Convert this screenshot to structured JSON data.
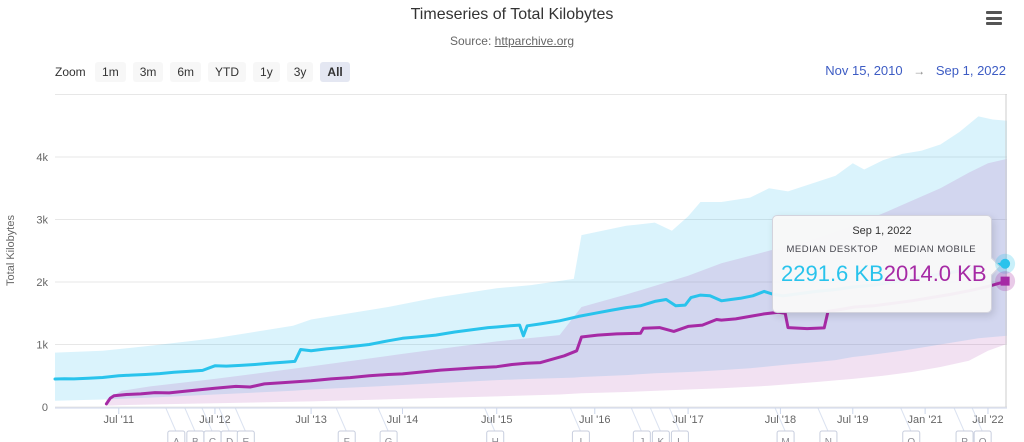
{
  "header": {
    "title": "Timeseries of Total Kilobytes",
    "subtitle_prefix": "Source: ",
    "subtitle_link": "httparchive.org"
  },
  "range_selector": {
    "zoom_label": "Zoom",
    "buttons": [
      "1m",
      "3m",
      "6m",
      "YTD",
      "1y",
      "3y",
      "All"
    ],
    "selected": "All",
    "from_date": "Nov 15, 2010",
    "arrow_glyph": "→",
    "to_date": "Sep 1, 2022"
  },
  "tooltip": {
    "date": "Sep 1, 2022",
    "entries": [
      {
        "label": "MEDIAN DESKTOP",
        "value": "2291.6 KB",
        "color": "#29c3ec"
      },
      {
        "label": "MEDIAN MOBILE",
        "value": "2014.0 KB",
        "color": "#a62aa5"
      }
    ]
  },
  "colors": {
    "desktop_line": "#29c3ec",
    "mobile_line": "#a62aa5",
    "desktop_band": "rgba(72,196,240,0.20)",
    "mobile_band": "rgba(166,42,165,0.14)",
    "gridline": "#e7e7e7",
    "axis_line": "#ccd6eb",
    "crosshair": "#cccccc",
    "axis_text": "#666666",
    "flag_border": "#c8cede",
    "flag_text": "#8a8a92"
  },
  "chart_data": {
    "type": "line",
    "title": "Timeseries of Total Kilobytes",
    "ylabel": "Total Kilobytes",
    "ylim": [
      0,
      5000
    ],
    "yticks": [
      {
        "label": "0",
        "kb": 0
      },
      {
        "label": "1k",
        "kb": 1000
      },
      {
        "label": "2k",
        "kb": 2000
      },
      {
        "label": "3k",
        "kb": 3000
      },
      {
        "label": "4k",
        "kb": 4000
      },
      {
        "label": "",
        "kb": 5000
      }
    ],
    "xticks": [
      {
        "label": "Jul '11",
        "pos": 0.067
      },
      {
        "label": "Jul '12",
        "pos": 0.168
      },
      {
        "label": "Jul '13",
        "pos": 0.269
      },
      {
        "label": "Jul '14",
        "pos": 0.365
      },
      {
        "label": "Jul '15",
        "pos": 0.464
      },
      {
        "label": "Jul '16",
        "pos": 0.567
      },
      {
        "label": "Jul '17",
        "pos": 0.665
      },
      {
        "label": "Jul '18",
        "pos": 0.762
      },
      {
        "label": "Jul '19",
        "pos": 0.838
      },
      {
        "label": "Jan '21",
        "pos": 0.914
      },
      {
        "label": "Jul '22",
        "pos": 0.98
      }
    ],
    "series": [
      {
        "name": "Median Desktop",
        "unit": "KB",
        "last_value": 2291.6,
        "marker": "circle",
        "points": [
          [
            0,
            448
          ],
          [
            0.01,
            452
          ],
          [
            0.02,
            450
          ],
          [
            0.035,
            460
          ],
          [
            0.05,
            472
          ],
          [
            0.067,
            500
          ],
          [
            0.08,
            510
          ],
          [
            0.095,
            520
          ],
          [
            0.11,
            535
          ],
          [
            0.125,
            555
          ],
          [
            0.14,
            570
          ],
          [
            0.155,
            585
          ],
          [
            0.168,
            660
          ],
          [
            0.18,
            655
          ],
          [
            0.195,
            665
          ],
          [
            0.21,
            680
          ],
          [
            0.225,
            700
          ],
          [
            0.24,
            715
          ],
          [
            0.252,
            730
          ],
          [
            0.258,
            920
          ],
          [
            0.269,
            900
          ],
          [
            0.285,
            930
          ],
          [
            0.3,
            950
          ],
          [
            0.315,
            975
          ],
          [
            0.33,
            1000
          ],
          [
            0.35,
            1060
          ],
          [
            0.365,
            1100
          ],
          [
            0.38,
            1120
          ],
          [
            0.4,
            1150
          ],
          [
            0.42,
            1200
          ],
          [
            0.44,
            1240
          ],
          [
            0.455,
            1270
          ],
          [
            0.464,
            1280
          ],
          [
            0.478,
            1300
          ],
          [
            0.488,
            1310
          ],
          [
            0.492,
            1140
          ],
          [
            0.496,
            1300
          ],
          [
            0.51,
            1330
          ],
          [
            0.53,
            1380
          ],
          [
            0.55,
            1450
          ],
          [
            0.567,
            1500
          ],
          [
            0.585,
            1550
          ],
          [
            0.6,
            1590
          ],
          [
            0.615,
            1620
          ],
          [
            0.63,
            1690
          ],
          [
            0.642,
            1720
          ],
          [
            0.652,
            1620
          ],
          [
            0.662,
            1630
          ],
          [
            0.668,
            1750
          ],
          [
            0.678,
            1790
          ],
          [
            0.688,
            1780
          ],
          [
            0.7,
            1700
          ],
          [
            0.71,
            1720
          ],
          [
            0.72,
            1740
          ],
          [
            0.733,
            1780
          ],
          [
            0.745,
            1850
          ],
          [
            0.755,
            1800
          ],
          [
            0.765,
            1780
          ],
          [
            0.775,
            1800
          ],
          [
            0.8,
            1850
          ],
          [
            0.82,
            1880
          ],
          [
            0.838,
            1920
          ],
          [
            0.86,
            1950
          ],
          [
            0.88,
            2000
          ],
          [
            0.9,
            2050
          ],
          [
            0.92,
            2100
          ],
          [
            0.94,
            2150
          ],
          [
            0.96,
            2200
          ],
          [
            0.975,
            2250
          ],
          [
            0.99,
            2280
          ],
          [
            1,
            2291.6
          ]
        ]
      },
      {
        "name": "Median Mobile",
        "unit": "KB",
        "last_value": 2014.0,
        "marker": "square",
        "points": [
          [
            0.054,
            50
          ],
          [
            0.058,
            140
          ],
          [
            0.062,
            180
          ],
          [
            0.075,
            200
          ],
          [
            0.09,
            210
          ],
          [
            0.105,
            230
          ],
          [
            0.12,
            225
          ],
          [
            0.135,
            250
          ],
          [
            0.168,
            300
          ],
          [
            0.19,
            330
          ],
          [
            0.205,
            320
          ],
          [
            0.22,
            370
          ],
          [
            0.24,
            390
          ],
          [
            0.269,
            420
          ],
          [
            0.29,
            450
          ],
          [
            0.31,
            470
          ],
          [
            0.33,
            500
          ],
          [
            0.35,
            520
          ],
          [
            0.365,
            530
          ],
          [
            0.385,
            560
          ],
          [
            0.405,
            590
          ],
          [
            0.425,
            610
          ],
          [
            0.445,
            630
          ],
          [
            0.464,
            645
          ],
          [
            0.48,
            680
          ],
          [
            0.495,
            700
          ],
          [
            0.51,
            710
          ],
          [
            0.535,
            820
          ],
          [
            0.548,
            900
          ],
          [
            0.553,
            1120
          ],
          [
            0.57,
            1150
          ],
          [
            0.59,
            1170
          ],
          [
            0.615,
            1180
          ],
          [
            0.618,
            1260
          ],
          [
            0.635,
            1270
          ],
          [
            0.65,
            1210
          ],
          [
            0.665,
            1290
          ],
          [
            0.68,
            1310
          ],
          [
            0.695,
            1400
          ],
          [
            0.7,
            1390
          ],
          [
            0.715,
            1410
          ],
          [
            0.73,
            1450
          ],
          [
            0.745,
            1490
          ],
          [
            0.76,
            1515
          ],
          [
            0.767,
            1500
          ],
          [
            0.77,
            1270
          ],
          [
            0.79,
            1255
          ],
          [
            0.808,
            1265
          ],
          [
            0.812,
            1530
          ],
          [
            0.825,
            1560
          ],
          [
            0.84,
            1600
          ],
          [
            0.86,
            1620
          ],
          [
            0.88,
            1660
          ],
          [
            0.9,
            1700
          ],
          [
            0.92,
            1750
          ],
          [
            0.94,
            1800
          ],
          [
            0.96,
            1860
          ],
          [
            0.98,
            1930
          ],
          [
            1,
            2014.0
          ]
        ]
      }
    ],
    "bands": [
      {
        "name": "Desktop percentile band",
        "points": [
          [
            0,
            100,
            870
          ],
          [
            0.05,
            120,
            900
          ],
          [
            0.1,
            150,
            980
          ],
          [
            0.168,
            200,
            1100
          ],
          [
            0.25,
            260,
            1300
          ],
          [
            0.269,
            280,
            1400
          ],
          [
            0.35,
            340,
            1600
          ],
          [
            0.4,
            380,
            1750
          ],
          [
            0.464,
            430,
            1900
          ],
          [
            0.5,
            450,
            1950
          ],
          [
            0.545,
            470,
            2050
          ],
          [
            0.553,
            480,
            2750
          ],
          [
            0.6,
            510,
            2900
          ],
          [
            0.63,
            540,
            2950
          ],
          [
            0.648,
            550,
            2820
          ],
          [
            0.665,
            560,
            3050
          ],
          [
            0.678,
            570,
            3280
          ],
          [
            0.7,
            590,
            3280
          ],
          [
            0.73,
            620,
            3350
          ],
          [
            0.75,
            650,
            3500
          ],
          [
            0.77,
            680,
            3450
          ],
          [
            0.8,
            720,
            3600
          ],
          [
            0.82,
            750,
            3700
          ],
          [
            0.838,
            800,
            3900
          ],
          [
            0.85,
            820,
            3800
          ],
          [
            0.87,
            860,
            3950
          ],
          [
            0.89,
            900,
            4050
          ],
          [
            0.91,
            950,
            4100
          ],
          [
            0.93,
            1000,
            4200
          ],
          [
            0.95,
            1050,
            4400
          ],
          [
            0.97,
            1100,
            4650
          ],
          [
            0.985,
            1120,
            4600
          ],
          [
            1,
            1140,
            4580
          ]
        ]
      },
      {
        "name": "Mobile percentile band",
        "points": [
          [
            0.054,
            20,
            120
          ],
          [
            0.07,
            30,
            260
          ],
          [
            0.1,
            40,
            330
          ],
          [
            0.168,
            60,
            450
          ],
          [
            0.269,
            90,
            650
          ],
          [
            0.365,
            130,
            850
          ],
          [
            0.464,
            170,
            1050
          ],
          [
            0.53,
            200,
            1150
          ],
          [
            0.553,
            220,
            1600
          ],
          [
            0.6,
            240,
            1800
          ],
          [
            0.665,
            280,
            2100
          ],
          [
            0.7,
            300,
            2300
          ],
          [
            0.75,
            340,
            2500
          ],
          [
            0.8,
            400,
            2700
          ],
          [
            0.838,
            450,
            2900
          ],
          [
            0.87,
            500,
            3100
          ],
          [
            0.9,
            560,
            3300
          ],
          [
            0.93,
            640,
            3500
          ],
          [
            0.96,
            740,
            3750
          ],
          [
            0.98,
            900,
            3900
          ],
          [
            1,
            1010,
            3970
          ]
        ]
      }
    ],
    "flags": [
      {
        "label": "A",
        "pos": 0.129
      },
      {
        "label": "B",
        "pos": 0.149
      },
      {
        "label": "C",
        "pos": 0.167
      },
      {
        "label": "D",
        "pos": 0.185
      },
      {
        "label": "E",
        "pos": 0.202
      },
      {
        "label": "F",
        "pos": 0.308
      },
      {
        "label": "G",
        "pos": 0.352
      },
      {
        "label": "H",
        "pos": 0.464
      },
      {
        "label": "I",
        "pos": 0.554
      },
      {
        "label": "J",
        "pos": 0.618
      },
      {
        "label": "K",
        "pos": 0.638
      },
      {
        "label": "L",
        "pos": 0.658
      },
      {
        "label": "M",
        "pos": 0.769
      },
      {
        "label": "N",
        "pos": 0.814
      },
      {
        "label": "O",
        "pos": 0.901
      },
      {
        "label": "P",
        "pos": 0.957
      },
      {
        "label": "Q",
        "pos": 0.976
      }
    ],
    "legend_position": "none",
    "grid": "horizontal"
  }
}
